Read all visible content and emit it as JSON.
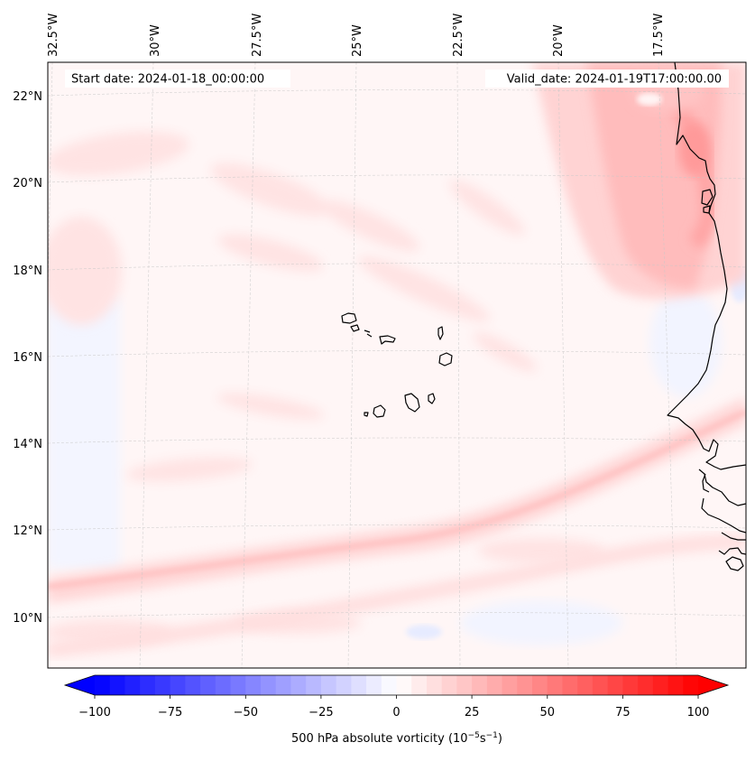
{
  "map": {
    "lon_labels": [
      "32.5°W",
      "30°W",
      "27.5°W",
      "25°W",
      "22.5°W",
      "20°W",
      "17.5°W"
    ],
    "lat_labels": [
      "22°N",
      "20°N",
      "18°N",
      "16°N",
      "14°N",
      "12°N",
      "10°N"
    ],
    "start_date": "Start date: 2024-01-18_00:00:00",
    "valid_date": "Valid_date: 2024-01-19T17:00:00.00"
  },
  "colorbar": {
    "ticks": [
      "−100",
      "−75",
      "−50",
      "−25",
      "0",
      "25",
      "50",
      "75",
      "100"
    ],
    "label_main": "500 hPa absolute vorticity (10",
    "label_exp1": "−5",
    "label_mid": "s",
    "label_exp2": "−1",
    "label_end": ")",
    "colors": {
      "neg_max": "#0000ff",
      "zero": "#ffffff",
      "pos_max": "#ff0000"
    }
  }
}
